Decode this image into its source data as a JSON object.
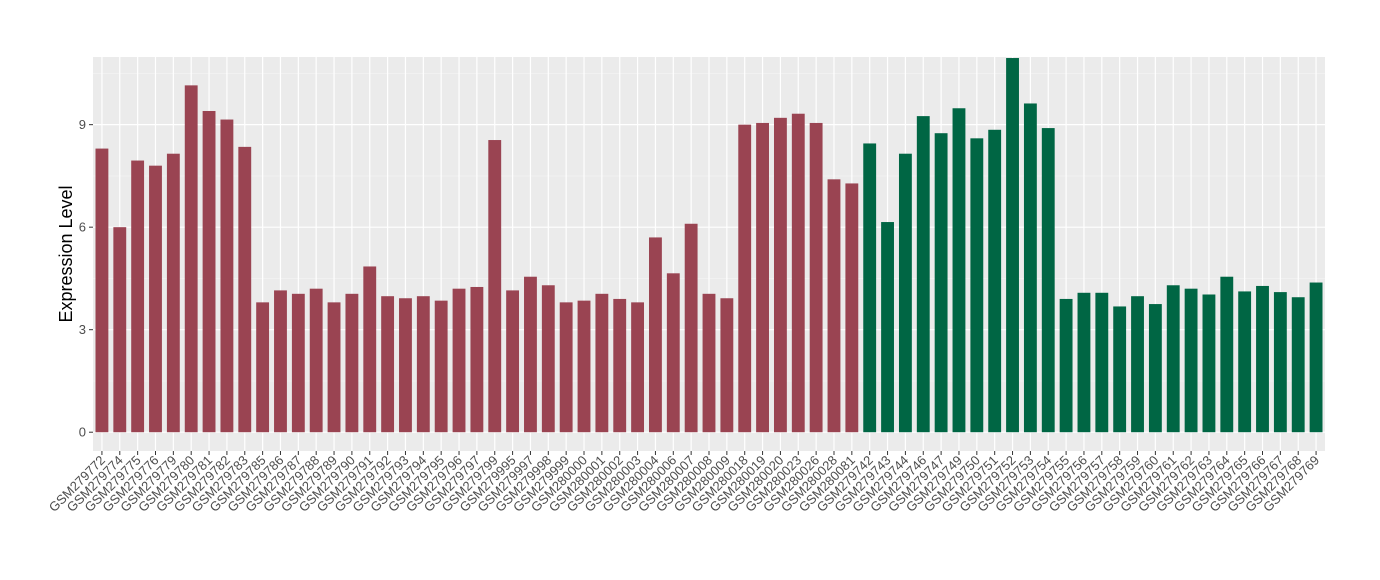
{
  "chart_data": {
    "type": "bar",
    "xlabel": "",
    "ylabel": "Expression Level",
    "ylim": [
      -0.55,
      10.98
    ],
    "yticks": [
      0,
      3,
      6,
      9
    ],
    "grid": true,
    "legend": "none",
    "panel_background": "#ebebeb",
    "categories": [
      "GSM279772",
      "GSM279774",
      "GSM279775",
      "GSM279776",
      "GSM279779",
      "GSM279780",
      "GSM279781",
      "GSM279782",
      "GSM279783",
      "GSM279785",
      "GSM279786",
      "GSM279787",
      "GSM279788",
      "GSM279789",
      "GSM279790",
      "GSM279791",
      "GSM279792",
      "GSM279793",
      "GSM279794",
      "GSM279795",
      "GSM279796",
      "GSM279797",
      "GSM279799",
      "GSM279995",
      "GSM279997",
      "GSM279998",
      "GSM279999",
      "GSM280000",
      "GSM280001",
      "GSM280002",
      "GSM280003",
      "GSM280004",
      "GSM280006",
      "GSM280007",
      "GSM280008",
      "GSM280009",
      "GSM280018",
      "GSM280019",
      "GSM280020",
      "GSM280023",
      "GSM280026",
      "GSM280028",
      "GSM280081",
      "GSM279742",
      "GSM279743",
      "GSM279744",
      "GSM279746",
      "GSM279747",
      "GSM279749",
      "GSM279750",
      "GSM279751",
      "GSM279752",
      "GSM279753",
      "GSM279754",
      "GSM279755",
      "GSM279756",
      "GSM279757",
      "GSM279758",
      "GSM279759",
      "GSM279760",
      "GSM279761",
      "GSM279762",
      "GSM279763",
      "GSM279764",
      "GSM279765",
      "GSM279766",
      "GSM279767",
      "GSM279768",
      "GSM279769"
    ],
    "values": [
      8.3,
      6.0,
      7.95,
      7.8,
      8.15,
      10.15,
      9.4,
      9.15,
      8.35,
      3.8,
      4.15,
      4.05,
      4.2,
      3.8,
      4.05,
      4.85,
      3.98,
      3.92,
      3.98,
      3.85,
      4.2,
      4.25,
      8.55,
      4.15,
      4.55,
      4.3,
      3.8,
      3.85,
      4.05,
      3.9,
      3.8,
      5.7,
      4.65,
      6.1,
      4.05,
      3.92,
      9.0,
      9.05,
      9.2,
      9.32,
      9.05,
      7.4,
      7.28,
      8.45,
      6.15,
      8.15,
      9.25,
      8.75,
      9.48,
      8.6,
      8.85,
      10.95,
      9.62,
      8.9,
      3.9,
      4.08,
      4.08,
      3.68,
      3.98,
      3.75,
      4.3,
      4.2,
      4.03,
      4.55,
      4.12,
      4.28,
      4.1,
      3.95,
      4.38
    ],
    "group_colors": [
      "#9a4452",
      "#006644"
    ],
    "bar_group": [
      0,
      0,
      0,
      0,
      0,
      0,
      0,
      0,
      0,
      0,
      0,
      0,
      0,
      0,
      0,
      0,
      0,
      0,
      0,
      0,
      0,
      0,
      0,
      0,
      0,
      0,
      0,
      0,
      0,
      0,
      0,
      0,
      0,
      0,
      0,
      0,
      0,
      0,
      0,
      0,
      0,
      0,
      0,
      1,
      1,
      1,
      1,
      1,
      1,
      1,
      1,
      1,
      1,
      1,
      1,
      1,
      1,
      1,
      1,
      1,
      1,
      1,
      1,
      1,
      1,
      1,
      1,
      1,
      1
    ]
  }
}
